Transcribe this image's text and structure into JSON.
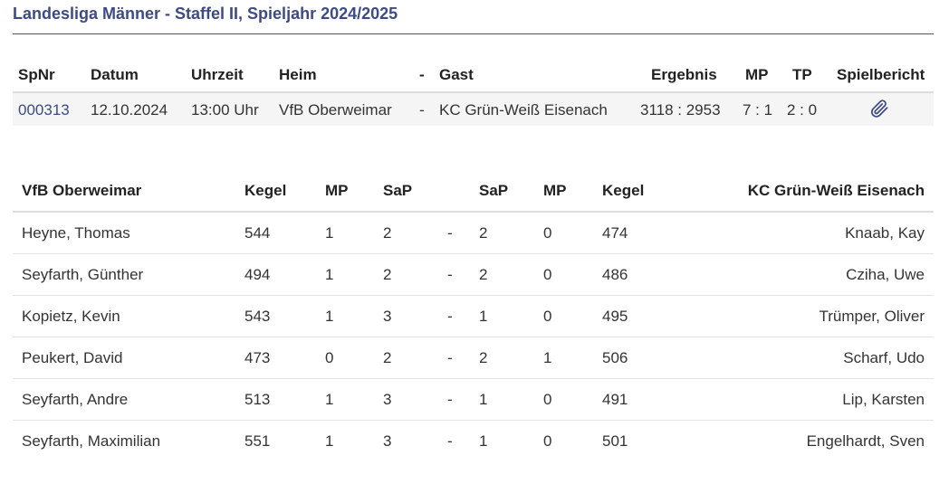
{
  "title": "Landesliga Männer - Staffel II, Spieljahr 2024/2025",
  "match_table": {
    "headers": {
      "spnr": "SpNr",
      "datum": "Datum",
      "uhrzeit": "Uhrzeit",
      "heim": "Heim",
      "dash": "-",
      "gast": "Gast",
      "ergebnis": "Ergebnis",
      "mp": "MP",
      "tp": "TP",
      "spielbericht": "Spielbericht"
    },
    "row": {
      "spnr": "000313",
      "datum": "12.10.2024",
      "uhrzeit": "13:00 Uhr",
      "heim": "VfB Oberweimar",
      "dash": "-",
      "gast": "KC Grün-Weiß Eisenach",
      "ergebnis": "3118 : 2953",
      "mp": "7 : 1",
      "tp": "2 : 0",
      "spielbericht_icon": "paperclip-icon"
    }
  },
  "players_table": {
    "headers": {
      "home_team": "VfB Oberweimar",
      "kegel_home": "Kegel",
      "mp_home": "MP",
      "sap_home": "SaP",
      "sap_away": "SaP",
      "mp_away": "MP",
      "kegel_away": "Kegel",
      "away_team": "KC Grün-Weiß Eisenach"
    },
    "rows": [
      {
        "home_player": "Heyne, Thomas",
        "kegel_home": "544",
        "mp_home": "1",
        "sap_home": "2",
        "dash": "-",
        "sap_away": "2",
        "mp_away": "0",
        "kegel_away": "474",
        "away_player": "Knaab, Kay"
      },
      {
        "home_player": "Seyfarth, Günther",
        "kegel_home": "494",
        "mp_home": "1",
        "sap_home": "2",
        "dash": "-",
        "sap_away": "2",
        "mp_away": "0",
        "kegel_away": "486",
        "away_player": "Cziha, Uwe"
      },
      {
        "home_player": "Kopietz, Kevin",
        "kegel_home": "543",
        "mp_home": "1",
        "sap_home": "3",
        "dash": "-",
        "sap_away": "1",
        "mp_away": "0",
        "kegel_away": "495",
        "away_player": "Trümper, Oliver"
      },
      {
        "home_player": "Peukert, David",
        "kegel_home": "473",
        "mp_home": "0",
        "sap_home": "2",
        "dash": "-",
        "sap_away": "2",
        "mp_away": "1",
        "kegel_away": "506",
        "away_player": "Scharf, Udo"
      },
      {
        "home_player": "Seyfarth, Andre",
        "kegel_home": "513",
        "mp_home": "1",
        "sap_home": "3",
        "dash": "-",
        "sap_away": "1",
        "mp_away": "0",
        "kegel_away": "491",
        "away_player": "Lip, Karsten"
      },
      {
        "home_player": "Seyfarth, Maximilian",
        "kegel_home": "551",
        "mp_home": "1",
        "sap_home": "3",
        "dash": "-",
        "sap_away": "1",
        "mp_away": "0",
        "kegel_away": "501",
        "away_player": "Engelhardt, Sven"
      }
    ]
  },
  "colors": {
    "title": "#3d4a86",
    "link": "#3d4a86",
    "row_bg": "#f5f5f5",
    "rule": "#dddddd"
  }
}
